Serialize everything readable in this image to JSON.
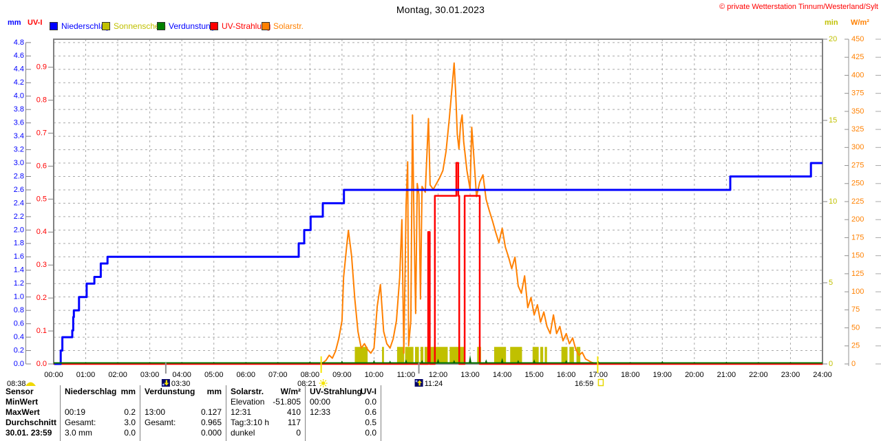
{
  "title": "Montag, 30.01.2023",
  "copyright": "© private Wetterstation Tinnum/Westerland/Sylt",
  "axis_headers": {
    "mm": "mm",
    "uvi": "UV-I",
    "min": "min",
    "wm2": "W/m²"
  },
  "legend": [
    {
      "name": "niederschlag",
      "label": "Niederschlag",
      "swatch_color": "#0000ff",
      "text_color": "#0000ff"
    },
    {
      "name": "sonnenschein",
      "label": "Sonnenschein",
      "swatch_color": "#c0c000",
      "text_color": "#c0c000"
    },
    {
      "name": "verdunstung",
      "label": "Verdunstung",
      "swatch_color": "#008000",
      "text_color": "#0000ff"
    },
    {
      "name": "uv-strahlung",
      "label": "UV-Strahlung",
      "swatch_color": "#ff0000",
      "text_color": "#ff0000"
    },
    {
      "name": "solarstr",
      "label": "Solarstr.",
      "swatch_color": "#ff8000",
      "text_color": "#ff8000"
    }
  ],
  "chart_data": {
    "type": "line",
    "title": "Montag, 30.01.2023",
    "x_unit": "hour_of_day",
    "x_range": [
      0,
      24
    ],
    "x_tick_labels": [
      "00:00",
      "01:00",
      "02:00",
      "03:00",
      "04:00",
      "05:00",
      "06:00",
      "07:00",
      "08:00",
      "09:00",
      "10:00",
      "11:00",
      "12:00",
      "13:00",
      "14:00",
      "15:00",
      "16:00",
      "17:00",
      "18:00",
      "19:00",
      "20:00",
      "21:00",
      "22:00",
      "23:00",
      "24:00"
    ],
    "grid": {
      "horizontal": true,
      "vertical": true,
      "style": "dashed",
      "color": "#a8a8a8"
    },
    "axes": {
      "mm": {
        "label": "mm",
        "side": "left-outer",
        "color": "#0000ff",
        "min": 0,
        "max": 4.8,
        "step": 0.2,
        "ticks": [
          "0.0",
          "0.2",
          "0.4",
          "0.6",
          "0.8",
          "1.0",
          "1.2",
          "1.4",
          "1.6",
          "1.8",
          "2.0",
          "2.2",
          "2.4",
          "2.6",
          "2.8",
          "3.0",
          "3.2",
          "3.4",
          "3.6",
          "3.8",
          "4.0",
          "4.2",
          "4.4",
          "4.6",
          "4.8"
        ]
      },
      "uv": {
        "label": "UV-I",
        "side": "left-inner",
        "color": "#ff0000",
        "min": 0,
        "max": 0.9,
        "step": 0.1,
        "ticks": [
          "0.0",
          "0.1",
          "0.2",
          "0.3",
          "0.4",
          "0.5",
          "0.6",
          "0.7",
          "0.8",
          "0.9"
        ]
      },
      "min": {
        "label": "min",
        "side": "right-inner",
        "color": "#c0c000",
        "min": 0,
        "max": 20,
        "step": 5,
        "ticks": [
          "0",
          "5",
          "10",
          "15",
          "20"
        ]
      },
      "wm2": {
        "label": "W/m²",
        "side": "right-outer",
        "color": "#ff8000",
        "min": 0,
        "max": 450,
        "step": 25,
        "ticks": [
          "0",
          "25",
          "50",
          "75",
          "100",
          "125",
          "150",
          "175",
          "200",
          "225",
          "250",
          "275",
          "300",
          "325",
          "350",
          "375",
          "400",
          "425",
          "450"
        ]
      }
    },
    "series": [
      {
        "name": "Niederschlag",
        "unit": "mm",
        "axis": "mm",
        "color": "#0000ff",
        "style": "step-line",
        "description": "cumulative precipitation, total 3.0 mm",
        "points": [
          [
            0.02,
            0
          ],
          [
            0.22,
            0
          ],
          [
            0.22,
            0.2
          ],
          [
            0.27,
            0.2
          ],
          [
            0.27,
            0.4
          ],
          [
            0.58,
            0.4
          ],
          [
            0.58,
            0.5
          ],
          [
            0.61,
            0.5
          ],
          [
            0.61,
            0.7
          ],
          [
            0.63,
            0.7
          ],
          [
            0.63,
            0.8
          ],
          [
            0.79,
            0.8
          ],
          [
            0.79,
            1.0
          ],
          [
            1.03,
            1.0
          ],
          [
            1.03,
            1.2
          ],
          [
            1.27,
            1.2
          ],
          [
            1.27,
            1.3
          ],
          [
            1.47,
            1.3
          ],
          [
            1.47,
            1.5
          ],
          [
            1.68,
            1.5
          ],
          [
            1.68,
            1.6
          ],
          [
            7.65,
            1.6
          ],
          [
            7.65,
            1.8
          ],
          [
            7.82,
            1.8
          ],
          [
            7.82,
            2.0
          ],
          [
            8.02,
            2.0
          ],
          [
            8.02,
            2.2
          ],
          [
            8.4,
            2.2
          ],
          [
            8.4,
            2.4
          ],
          [
            9.06,
            2.4
          ],
          [
            9.06,
            2.6
          ],
          [
            21.12,
            2.6
          ],
          [
            21.12,
            2.8
          ],
          [
            23.64,
            2.8
          ],
          [
            23.64,
            3.0
          ],
          [
            24,
            3.0
          ]
        ]
      },
      {
        "name": "UV-Strahlung",
        "unit": "UV-I",
        "axis": "uv",
        "color": "#ff0000",
        "style": "step-line",
        "description": "UV index, max 0.6 at 12:33",
        "points": [
          [
            0,
            0
          ],
          [
            11.69,
            0
          ],
          [
            11.69,
            0.4
          ],
          [
            11.74,
            0.4
          ],
          [
            11.74,
            0
          ],
          [
            11.9,
            0
          ],
          [
            11.9,
            0.51
          ],
          [
            12.57,
            0.51
          ],
          [
            12.57,
            0.61
          ],
          [
            12.63,
            0.61
          ],
          [
            12.63,
            0.51
          ],
          [
            12.66,
            0.51
          ],
          [
            12.66,
            0
          ],
          [
            12.83,
            0
          ],
          [
            12.83,
            0.51
          ],
          [
            13.3,
            0.51
          ],
          [
            13.3,
            0
          ],
          [
            24,
            0
          ]
        ]
      },
      {
        "name": "Solarstr.",
        "unit": "W/m²",
        "axis": "wm2",
        "color": "#ff8000",
        "style": "line",
        "description": "solar radiation, max 410 W/m² at 12:31",
        "points": [
          [
            8.35,
            0
          ],
          [
            8.5,
            5
          ],
          [
            8.6,
            12
          ],
          [
            8.7,
            8
          ],
          [
            8.8,
            18
          ],
          [
            8.9,
            35
          ],
          [
            9.0,
            60
          ],
          [
            9.05,
            120
          ],
          [
            9.15,
            165
          ],
          [
            9.2,
            185
          ],
          [
            9.3,
            150
          ],
          [
            9.4,
            90
          ],
          [
            9.5,
            45
          ],
          [
            9.6,
            22
          ],
          [
            9.7,
            28
          ],
          [
            9.8,
            20
          ],
          [
            9.9,
            15
          ],
          [
            10.0,
            22
          ],
          [
            10.1,
            80
          ],
          [
            10.2,
            110
          ],
          [
            10.3,
            45
          ],
          [
            10.4,
            28
          ],
          [
            10.5,
            22
          ],
          [
            10.6,
            35
          ],
          [
            10.7,
            60
          ],
          [
            10.8,
            120
          ],
          [
            10.87,
            200
          ],
          [
            10.93,
            15
          ],
          [
            11.0,
            220
          ],
          [
            11.05,
            280
          ],
          [
            11.08,
            25
          ],
          [
            11.15,
            60
          ],
          [
            11.2,
            345
          ],
          [
            11.25,
            190
          ],
          [
            11.3,
            70
          ],
          [
            11.35,
            250
          ],
          [
            11.4,
            235
          ],
          [
            11.45,
            90
          ],
          [
            11.5,
            246
          ],
          [
            11.6,
            238
          ],
          [
            11.7,
            340
          ],
          [
            11.75,
            248
          ],
          [
            11.85,
            242
          ],
          [
            11.95,
            250
          ],
          [
            12.05,
            258
          ],
          [
            12.15,
            268
          ],
          [
            12.25,
            295
          ],
          [
            12.35,
            340
          ],
          [
            12.45,
            390
          ],
          [
            12.5,
            417
          ],
          [
            12.55,
            375
          ],
          [
            12.6,
            318
          ],
          [
            12.65,
            298
          ],
          [
            12.7,
            332
          ],
          [
            12.75,
            345
          ],
          [
            12.8,
            308
          ],
          [
            12.9,
            268
          ],
          [
            13.0,
            242
          ],
          [
            13.05,
            328
          ],
          [
            13.1,
            298
          ],
          [
            13.2,
            232
          ],
          [
            13.3,
            252
          ],
          [
            13.4,
            262
          ],
          [
            13.5,
            228
          ],
          [
            13.6,
            212
          ],
          [
            13.7,
            198
          ],
          [
            13.8,
            182
          ],
          [
            13.9,
            168
          ],
          [
            14.0,
            188
          ],
          [
            14.1,
            162
          ],
          [
            14.2,
            148
          ],
          [
            14.3,
            132
          ],
          [
            14.4,
            148
          ],
          [
            14.5,
            108
          ],
          [
            14.6,
            98
          ],
          [
            14.7,
            122
          ],
          [
            14.8,
            78
          ],
          [
            14.9,
            92
          ],
          [
            15.0,
            68
          ],
          [
            15.1,
            82
          ],
          [
            15.2,
            58
          ],
          [
            15.3,
            72
          ],
          [
            15.4,
            52
          ],
          [
            15.5,
            42
          ],
          [
            15.6,
            68
          ],
          [
            15.7,
            42
          ],
          [
            15.8,
            52
          ],
          [
            15.9,
            32
          ],
          [
            16.0,
            42
          ],
          [
            16.1,
            28
          ],
          [
            16.2,
            36
          ],
          [
            16.3,
            20
          ],
          [
            16.4,
            12
          ],
          [
            16.5,
            16
          ],
          [
            16.6,
            7
          ],
          [
            16.8,
            2
          ],
          [
            17.0,
            0
          ]
        ]
      },
      {
        "name": "Sonnenschein",
        "unit": "min",
        "axis": "min",
        "color": "#c0c000",
        "style": "interval-bars",
        "description": "sunshine periods, day total 3:10 h",
        "bar_value": 1.05,
        "intervals": [
          [
            9.4,
            9.8
          ],
          [
            10.25,
            10.31
          ],
          [
            10.72,
            10.94
          ],
          [
            10.97,
            11.23
          ],
          [
            11.28,
            11.4
          ],
          [
            11.45,
            11.54
          ],
          [
            11.58,
            12.3
          ],
          [
            12.36,
            12.64
          ],
          [
            12.68,
            12.84
          ],
          [
            13.22,
            13.34
          ],
          [
            13.75,
            14.12
          ],
          [
            14.25,
            14.62
          ],
          [
            14.95,
            15.14
          ],
          [
            15.19,
            15.28
          ],
          [
            15.33,
            15.4
          ],
          [
            15.85,
            16.04
          ],
          [
            16.1,
            16.24
          ],
          [
            16.32,
            16.44
          ]
        ]
      },
      {
        "name": "Verdunstung",
        "unit": "mm",
        "axis": "mm",
        "color": "#008000",
        "style": "baseline-spikes",
        "description": "evaporation, total 0.965 mm, max 0.127 at 13:00",
        "spikes": [
          [
            1,
            0.01
          ],
          [
            2,
            0.01
          ],
          [
            3,
            0.015
          ],
          [
            4,
            0.02
          ],
          [
            5,
            0.02
          ],
          [
            6,
            0.02
          ],
          [
            7,
            0.02
          ],
          [
            8,
            0.03
          ],
          [
            9,
            0.04
          ],
          [
            10,
            0.05
          ],
          [
            10.5,
            0.04
          ],
          [
            11,
            0.06
          ],
          [
            11.5,
            0.05
          ],
          [
            12,
            0.07
          ],
          [
            12.5,
            0.05
          ],
          [
            13,
            0.127
          ],
          [
            13.5,
            0.06
          ],
          [
            14,
            0.08
          ],
          [
            14.5,
            0.05
          ],
          [
            15,
            0.06
          ],
          [
            16,
            0.05
          ],
          [
            17,
            0.04
          ],
          [
            18,
            0.02
          ],
          [
            19,
            0.035
          ],
          [
            20,
            0.02
          ],
          [
            21,
            0.025
          ],
          [
            22,
            0.02
          ],
          [
            23,
            0.02
          ]
        ]
      }
    ]
  },
  "sun_moon_markers": [
    {
      "time": "08:38",
      "icon": "sun-horizon-icon",
      "type": "twilight",
      "position": "left-margin"
    },
    {
      "time": "03:30",
      "icon": "moon-set-icon",
      "type": "moonset",
      "hour": 3.5
    },
    {
      "time": "08:21",
      "icon": "sunrise-icon",
      "type": "sunrise",
      "hour": 8.35
    },
    {
      "time": "11:24",
      "icon": "moon-rise-icon",
      "type": "moonrise",
      "hour": 11.4
    },
    {
      "time": "16:59",
      "icon": "sunset-icon",
      "type": "sunset",
      "hour": 16.983
    }
  ],
  "table": {
    "corner_label": "Sensor",
    "row_labels": [
      "MinWert",
      "MaxWert",
      "Durchschnitt",
      "30.01. 23:59"
    ],
    "columns": [
      {
        "name": "Niederschlag",
        "unit": "mm",
        "rows": [
          [
            "",
            ""
          ],
          [
            "00:19",
            "0.2"
          ],
          [
            "Gesamt:",
            "3.0"
          ],
          [
            "3.0 mm",
            "0.0"
          ]
        ]
      },
      {
        "name": "Verdunstung",
        "unit": "mm",
        "rows": [
          [
            "",
            ""
          ],
          [
            "13:00",
            "0.127"
          ],
          [
            "Gesamt:",
            "0.965"
          ],
          [
            "",
            "0.000"
          ]
        ]
      },
      {
        "name": "Solarstr.",
        "unit": "W/m²",
        "rows": [
          [
            "Elevation",
            "-51.805"
          ],
          [
            "12:31",
            "410"
          ],
          [
            "Tag:3:10 h",
            "117"
          ],
          [
            "dunkel",
            "0"
          ]
        ]
      },
      {
        "name": "UV-Strahlung",
        "unit": "UV-I",
        "rows": [
          [
            "00:00",
            "0.0"
          ],
          [
            "12:33",
            "0.6"
          ],
          [
            "",
            "0.5"
          ],
          [
            "",
            "0.0"
          ]
        ]
      }
    ]
  }
}
